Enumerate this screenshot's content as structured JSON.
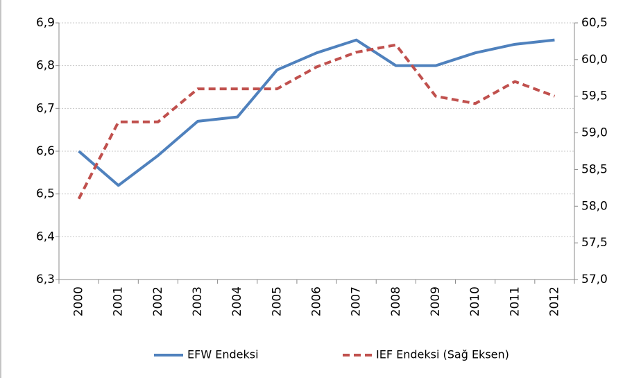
{
  "chart_data": {
    "type": "line",
    "categories": [
      "2000",
      "2001",
      "2002",
      "2003",
      "2004",
      "2005",
      "2006",
      "2007",
      "2008",
      "2009",
      "2010",
      "2011",
      "2012"
    ],
    "series": [
      {
        "name": "EFW Endeksi",
        "color": "#4f81bd",
        "style": "solid",
        "values": [
          6.6,
          6.52,
          6.59,
          6.67,
          6.68,
          6.79,
          6.83,
          6.86,
          6.8,
          6.8,
          6.83,
          6.85,
          6.86
        ]
      },
      {
        "name": "IEF Endeksi (Sağ Eksen)",
        "color": "#c0504d",
        "style": "dashed",
        "axis": "y2",
        "values": [
          58.1,
          59.15,
          59.15,
          59.6,
          59.6,
          59.6,
          59.9,
          60.1,
          60.2,
          59.5,
          59.4,
          59.7,
          59.5
        ]
      }
    ],
    "ylim": [
      6.3,
      6.9
    ],
    "yticks": [
      {
        "value": 6.3,
        "label": "6,3"
      },
      {
        "value": 6.4,
        "label": "6,4"
      },
      {
        "value": 6.5,
        "label": "6,5"
      },
      {
        "value": 6.6,
        "label": "6,6"
      },
      {
        "value": 6.7,
        "label": "6,7"
      },
      {
        "value": 6.8,
        "label": "6,8"
      },
      {
        "value": 6.9,
        "label": "6,9"
      }
    ],
    "y2lim": [
      57.0,
      60.5
    ],
    "y2ticks": [
      {
        "value": 57.0,
        "label": "57,0"
      },
      {
        "value": 57.5,
        "label": "57,5"
      },
      {
        "value": 58.0,
        "label": "58,0"
      },
      {
        "value": 58.5,
        "label": "58,5"
      },
      {
        "value": 59.0,
        "label": "59,0"
      },
      {
        "value": 59.5,
        "label": "59,5"
      },
      {
        "value": 60.0,
        "label": "60,0"
      },
      {
        "value": 60.5,
        "label": "60,5"
      }
    ],
    "grid": true,
    "legend": "bottom"
  }
}
